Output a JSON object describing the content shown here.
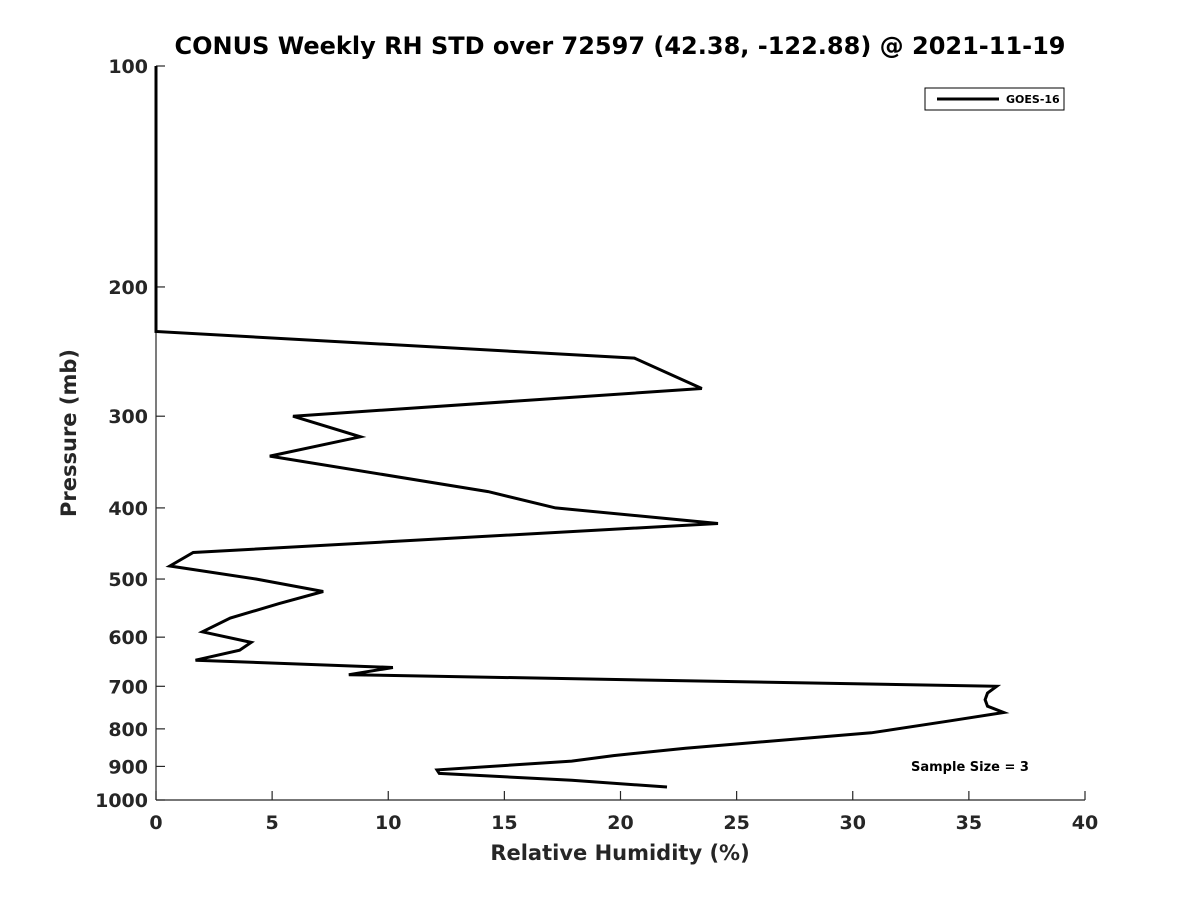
{
  "chart_data": {
    "type": "line",
    "title": "CONUS Weekly RH STD over 72597 (42.38, -122.88) @ 2021-11-19",
    "xlabel": "Relative Humidity (%)",
    "ylabel": "Pressure (mb)",
    "xlim": [
      0,
      40
    ],
    "ylim": [
      100,
      1000
    ],
    "yscale": "log",
    "y_reversed": true,
    "x_ticks": [
      0,
      5,
      10,
      15,
      20,
      25,
      30,
      35,
      40
    ],
    "y_ticks": [
      100,
      200,
      300,
      400,
      500,
      600,
      700,
      800,
      900,
      1000
    ],
    "grid": false,
    "legend_position": "top-right",
    "line_color": "#000000",
    "series": [
      {
        "name": "GOES-16",
        "x": [
          0,
          0,
          0,
          0,
          20.6,
          23.5,
          5.9,
          8.8,
          4.9,
          14.3,
          17.2,
          24.2,
          1.6,
          0.6,
          4.3,
          7.2,
          5.3,
          3.2,
          2.0,
          4.1,
          3.6,
          1.7,
          10.2,
          8.3,
          36.2,
          35.8,
          35.7,
          35.8,
          36.5,
          34.2,
          30.8,
          22.8,
          19.7,
          17.9,
          12.1,
          12.2,
          17.9,
          22.0
        ],
        "y": [
          100,
          150,
          200,
          230,
          250,
          275,
          300,
          320,
          340,
          380,
          400,
          420,
          460,
          480,
          500,
          520,
          540,
          565,
          590,
          610,
          625,
          645,
          660,
          675,
          700,
          715,
          730,
          745,
          760,
          780,
          810,
          850,
          870,
          885,
          910,
          920,
          940,
          960
        ]
      }
    ],
    "annotations": [
      "Sample Size = 3"
    ]
  }
}
